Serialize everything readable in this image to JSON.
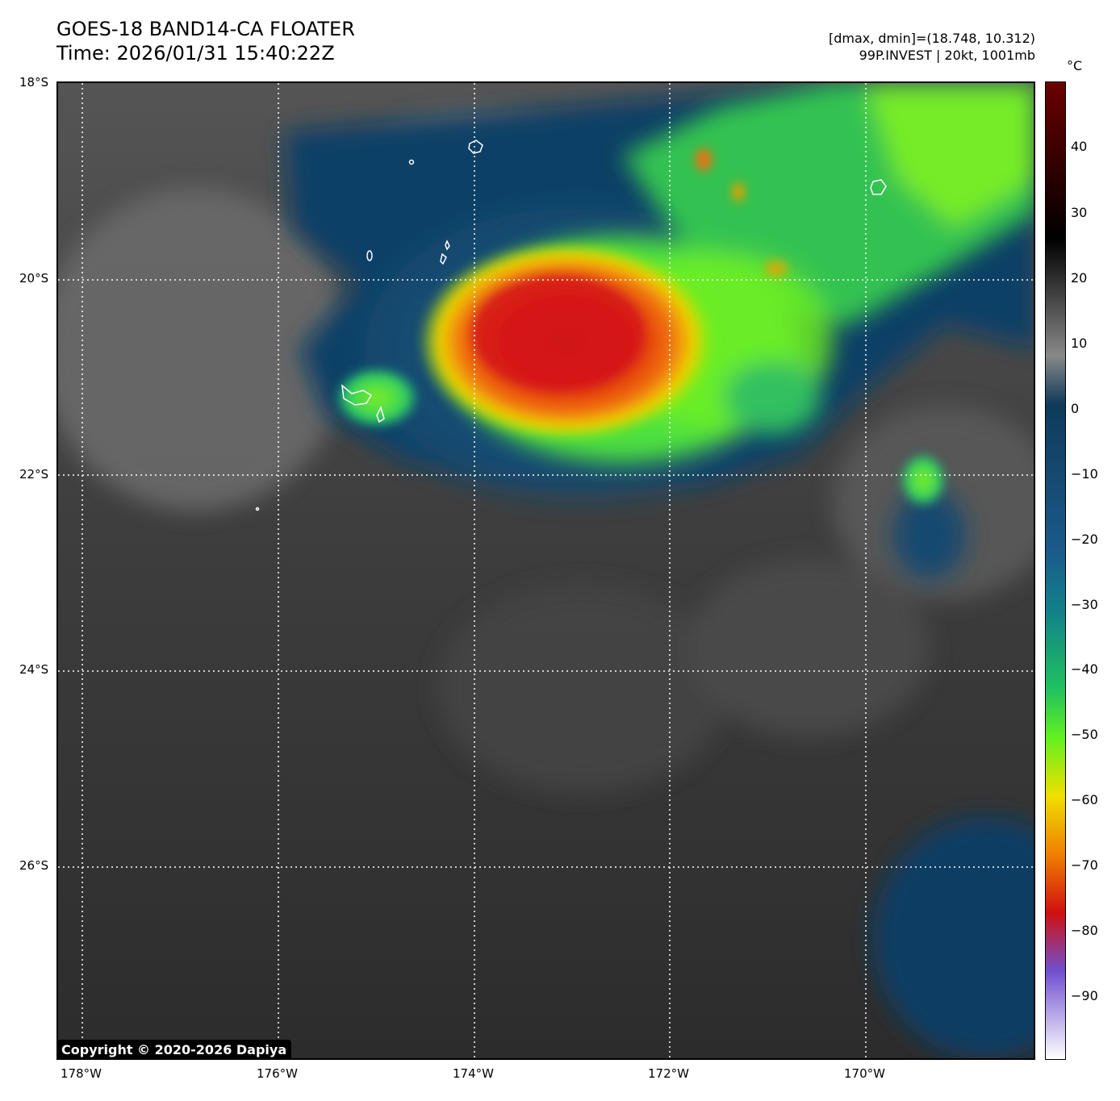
{
  "header": {
    "title_line1": "GOES-18 BAND14-CA FLOATER",
    "title_line2": "Time: 2026/01/31 15:40:22Z",
    "info_line1": "[dmax, dmin]=(18.748, 10.312)",
    "info_line2": "99P.INVEST | 20kt, 1001mb"
  },
  "map": {
    "lat_ticks": [
      "18°S",
      "20°S",
      "22°S",
      "24°S",
      "26°S"
    ],
    "lon_ticks": [
      "178°W",
      "176°W",
      "174°W",
      "172°W",
      "170°W"
    ],
    "copyright": "Copyright © 2020-2026 Dapiya"
  },
  "colorbar": {
    "unit": "°C",
    "ticks": [
      "40",
      "30",
      "20",
      "10",
      "0",
      "−10",
      "−20",
      "−30",
      "−40",
      "−50",
      "−60",
      "−70",
      "−80",
      "−90"
    ],
    "colors": {
      "warm_top": "#6b0000",
      "black": "#000000",
      "gray": "#888888",
      "navy": "#0f3a5a",
      "blue": "#1b5a8a",
      "teal": "#12808a",
      "green": "#20c060",
      "lime": "#60f020",
      "yellow": "#f0e000",
      "orange": "#f08000",
      "red": "#d01010",
      "purple": "#7050d0",
      "white": "#ffffff"
    }
  }
}
